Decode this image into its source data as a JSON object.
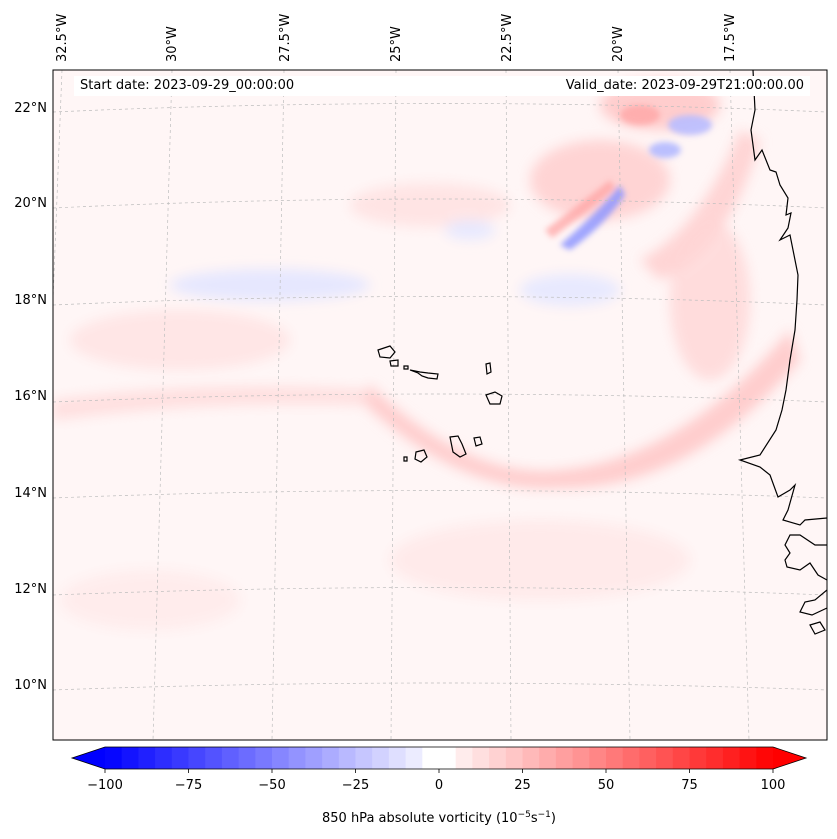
{
  "map": {
    "longitude_labels": [
      "32.5°W",
      "30°W",
      "27.5°W",
      "25°W",
      "22.5°W",
      "20°W",
      "17.5°W"
    ],
    "latitude_labels": [
      "22°N",
      "20°N",
      "18°N",
      "16°N",
      "14°N",
      "12°N",
      "10°N"
    ],
    "start_date": "Start date: 2023-09-29_00:00:00",
    "valid_date": "Valid_date: 2023-09-29T21:00:00.00",
    "field": "850 hPa absolute vorticity",
    "features": [
      "coastline of West Africa",
      "Cape Verde islands",
      "dashed lat/lon gridlines",
      "blue and red vorticity contour shading"
    ]
  },
  "colorbar": {
    "ticks": [
      "−100",
      "−75",
      "−50",
      "−25",
      "0",
      "25",
      "50",
      "75",
      "100"
    ],
    "label": "850 hPa absolute vorticity (10",
    "unit_exp1": "−5",
    "unit_mid": "s",
    "unit_exp2": "−1",
    "label_end": ")",
    "colormap": "bwr",
    "extend": "both",
    "min_color": "#0000ff",
    "mid_color": "#ffffff",
    "max_color": "#ff0000"
  }
}
